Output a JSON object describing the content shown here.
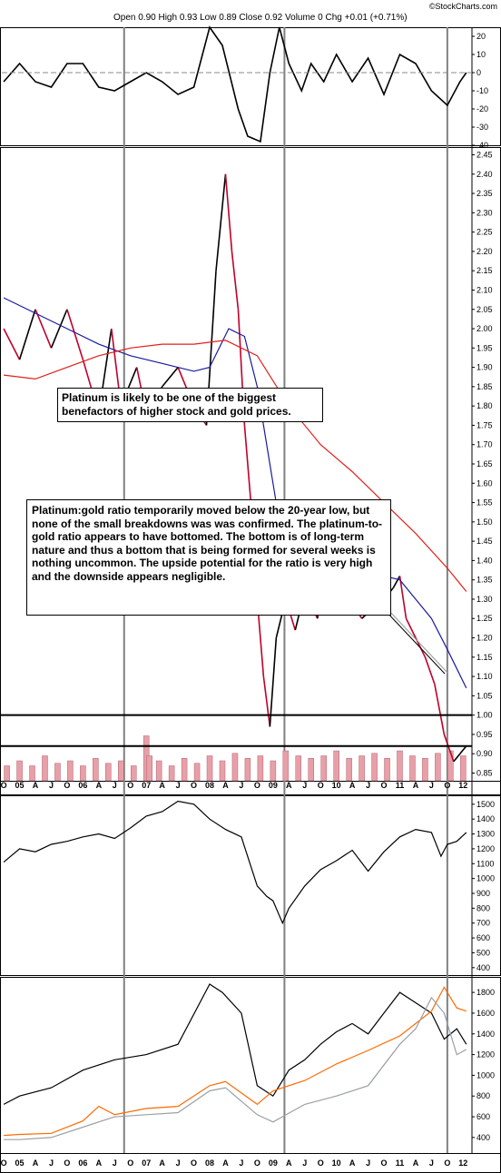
{
  "header": {
    "credit": "©StockCharts.com",
    "quote": "Open 0.90  High 0.93  Low 0.89  Close 0.92  Volume 0  Chg +0.01 (+0.71%)"
  },
  "annotations": {
    "note1": "Platinum is likely to be one of the biggest benefactors of higher stock and gold prices.",
    "note2": "Platinum:gold ratio temporarily moved below the 20-year low, but none of the small breakdowns was was confirmed. The platinum-to-gold ratio appears to have bottomed. The bottom is of long-term nature and thus a bottom that is being formed for several weeks is nothing uncommon. The upside potential for the ratio is very high and the downside appears negligible."
  },
  "colors": {
    "price_up": "#000000",
    "price_down": "#c0002a",
    "ma_fast": "#1a1aa0",
    "ma_slow": "#e0201a",
    "volume": "#e8a0a8",
    "orange": "#ff6a00",
    "gray": "#9aa0a6",
    "vline": "#808080"
  },
  "chart_data": [
    {
      "type": "line",
      "panel": "momentum",
      "ylim": [
        -40,
        25
      ],
      "yticks": [
        "20",
        "10",
        "0",
        "-10",
        "-20",
        "-30",
        "-40"
      ],
      "x": [
        2004.75,
        2005.0,
        2005.25,
        2005.5,
        2005.75,
        2006.0,
        2006.25,
        2006.5,
        2006.75,
        2007.0,
        2007.25,
        2007.5,
        2007.75,
        2008.0,
        2008.2,
        2008.45,
        2008.6,
        2008.8,
        2008.95,
        2009.1,
        2009.25,
        2009.45,
        2009.6,
        2009.8,
        2010.0,
        2010.25,
        2010.5,
        2010.75,
        2011.0,
        2011.25,
        2011.5,
        2011.75,
        2011.95,
        2012.05
      ],
      "y": [
        -5,
        5,
        -5,
        -8,
        5,
        5,
        -8,
        -10,
        -5,
        0,
        -5,
        -12,
        -8,
        25,
        15,
        -20,
        -35,
        -38,
        0,
        25,
        5,
        -10,
        5,
        -5,
        10,
        -5,
        8,
        -12,
        10,
        5,
        -10,
        -18,
        -5,
        0
      ]
    },
    {
      "type": "line",
      "panel": "platinum-gold-ratio",
      "ylim": [
        0.83,
        2.47
      ],
      "yticks": [
        "2.45",
        "2.40",
        "2.35",
        "2.30",
        "2.25",
        "2.20",
        "2.15",
        "2.10",
        "2.05",
        "2.00",
        "1.95",
        "1.90",
        "1.85",
        "1.80",
        "1.75",
        "1.70",
        "1.65",
        "1.60",
        "1.55",
        "1.50",
        "1.45",
        "1.40",
        "1.35",
        "1.30",
        "1.25",
        "1.20",
        "1.15",
        "1.10",
        "1.05",
        "1.00",
        "0.95",
        "0.90",
        "0.85"
      ],
      "hlines": [
        1.0,
        0.92
      ],
      "series": [
        {
          "role": "price",
          "x": [
            2004.75,
            2005.0,
            2005.25,
            2005.5,
            2005.75,
            2006.0,
            2006.25,
            2006.45,
            2006.6,
            2006.85,
            2007.0,
            2007.25,
            2007.5,
            2007.75,
            2007.95,
            2008.1,
            2008.25,
            2008.35,
            2008.45,
            2008.55,
            2008.65,
            2008.75,
            2008.85,
            2008.95,
            2009.05,
            2009.2,
            2009.35,
            2009.5,
            2009.7,
            2009.9,
            2010.05,
            2010.2,
            2010.4,
            2010.6,
            2010.75,
            2010.9,
            2011.0,
            2011.1,
            2011.25,
            2011.4,
            2011.55,
            2011.7,
            2011.85,
            2011.95,
            2012.05
          ],
          "y": [
            2.0,
            1.92,
            2.05,
            1.95,
            2.05,
            1.92,
            1.78,
            2.0,
            1.8,
            1.9,
            1.78,
            1.85,
            1.9,
            1.8,
            1.75,
            2.15,
            2.4,
            2.2,
            2.05,
            1.75,
            1.55,
            1.3,
            1.1,
            0.97,
            1.2,
            1.3,
            1.22,
            1.32,
            1.25,
            1.45,
            1.5,
            1.3,
            1.25,
            1.28,
            1.3,
            1.33,
            1.36,
            1.25,
            1.2,
            1.15,
            1.08,
            0.95,
            0.88,
            0.9,
            0.92
          ]
        },
        {
          "role": "ma-fast",
          "x": [
            2004.75,
            2005.25,
            2005.75,
            2006.25,
            2006.75,
            2007.25,
            2007.75,
            2008.0,
            2008.3,
            2008.55,
            2008.75,
            2009.0,
            2009.25,
            2009.5,
            2009.75,
            2010.0,
            2010.25,
            2010.5,
            2010.75,
            2011.0,
            2011.25,
            2011.5,
            2011.75,
            2012.05
          ],
          "y": [
            2.08,
            2.04,
            2.0,
            1.96,
            1.93,
            1.91,
            1.89,
            1.9,
            2.0,
            1.98,
            1.85,
            1.6,
            1.35,
            1.27,
            1.28,
            1.32,
            1.35,
            1.37,
            1.36,
            1.35,
            1.3,
            1.25,
            1.17,
            1.07
          ]
        },
        {
          "role": "ma-slow",
          "x": [
            2004.75,
            2005.25,
            2005.75,
            2006.25,
            2006.75,
            2007.25,
            2007.75,
            2008.25,
            2008.75,
            2009.25,
            2009.75,
            2010.25,
            2010.75,
            2011.25,
            2011.75,
            2012.05
          ],
          "y": [
            1.88,
            1.87,
            1.9,
            1.93,
            1.95,
            1.96,
            1.96,
            1.97,
            1.93,
            1.8,
            1.7,
            1.63,
            1.55,
            1.47,
            1.38,
            1.32
          ]
        }
      ],
      "volume": {
        "x": [
          2004.8,
          2005.0,
          2005.2,
          2005.4,
          2005.6,
          2005.8,
          2006.0,
          2006.2,
          2006.4,
          2006.6,
          2006.8,
          2007.0,
          2007.05,
          2007.2,
          2007.4,
          2007.6,
          2007.8,
          2008.0,
          2008.2,
          2008.4,
          2008.6,
          2008.8,
          2009.0,
          2009.2,
          2009.4,
          2009.6,
          2009.8,
          2010.0,
          2010.2,
          2010.4,
          2010.6,
          2010.8,
          2011.0,
          2011.2,
          2011.4,
          2011.6,
          2011.8,
          2012.0
        ],
        "y": [
          0.3,
          0.4,
          0.3,
          0.5,
          0.35,
          0.4,
          0.3,
          0.45,
          0.35,
          0.4,
          0.3,
          0.9,
          0.5,
          0.4,
          0.3,
          0.45,
          0.35,
          0.5,
          0.4,
          0.55,
          0.45,
          0.5,
          0.4,
          0.6,
          0.5,
          0.45,
          0.5,
          0.6,
          0.45,
          0.5,
          0.55,
          0.45,
          0.6,
          0.5,
          0.45,
          0.55,
          0.6,
          0.5
        ]
      }
    },
    {
      "type": "line",
      "panel": "stock-index",
      "ylim": [
        350,
        1560
      ],
      "yticks": [
        "1500",
        "1400",
        "1300",
        "1200",
        "1100",
        "1000",
        "900",
        "800",
        "700",
        "600",
        "500",
        "400"
      ],
      "x": [
        2004.75,
        2005.0,
        2005.25,
        2005.5,
        2005.75,
        2006.0,
        2006.25,
        2006.5,
        2006.75,
        2007.0,
        2007.25,
        2007.5,
        2007.75,
        2008.0,
        2008.25,
        2008.5,
        2008.75,
        2008.9,
        2009.0,
        2009.15,
        2009.25,
        2009.5,
        2009.75,
        2010.0,
        2010.25,
        2010.5,
        2010.75,
        2011.0,
        2011.25,
        2011.5,
        2011.65,
        2011.75,
        2011.9,
        2012.05
      ],
      "y": [
        1110,
        1200,
        1180,
        1230,
        1250,
        1280,
        1300,
        1270,
        1340,
        1420,
        1450,
        1520,
        1500,
        1400,
        1330,
        1280,
        950,
        880,
        850,
        700,
        800,
        950,
        1060,
        1120,
        1190,
        1050,
        1180,
        1280,
        1330,
        1310,
        1150,
        1230,
        1250,
        1310
      ]
    },
    {
      "type": "line",
      "panel": "metals",
      "ylim": [
        250,
        1950
      ],
      "yticks": [
        "1800",
        "1600",
        "1400",
        "1200",
        "1000",
        "800",
        "600",
        "400"
      ],
      "series": [
        {
          "role": "black",
          "x": [
            2004.75,
            2005.0,
            2005.5,
            2006.0,
            2006.5,
            2007.0,
            2007.5,
            2008.0,
            2008.2,
            2008.5,
            2008.75,
            2009.0,
            2009.25,
            2009.5,
            2009.75,
            2010.0,
            2010.25,
            2010.5,
            2010.75,
            2011.0,
            2011.25,
            2011.5,
            2011.7,
            2011.9,
            2012.05
          ],
          "y": [
            720,
            800,
            880,
            1050,
            1150,
            1200,
            1300,
            1880,
            1800,
            1600,
            900,
            800,
            1050,
            1150,
            1300,
            1420,
            1500,
            1400,
            1600,
            1800,
            1700,
            1600,
            1350,
            1450,
            1300
          ]
        },
        {
          "role": "orange",
          "x": [
            2004.75,
            2005.0,
            2005.5,
            2006.0,
            2006.25,
            2006.5,
            2007.0,
            2007.5,
            2008.0,
            2008.25,
            2008.75,
            2009.0,
            2009.5,
            2010.0,
            2010.5,
            2011.0,
            2011.5,
            2011.7,
            2011.9,
            2012.05
          ],
          "y": [
            420,
            430,
            440,
            560,
            700,
            620,
            680,
            700,
            900,
            940,
            720,
            850,
            950,
            1110,
            1240,
            1380,
            1620,
            1850,
            1650,
            1620
          ]
        },
        {
          "role": "gray",
          "x": [
            2004.75,
            2005.0,
            2005.5,
            2006.0,
            2006.5,
            2007.0,
            2007.5,
            2008.0,
            2008.25,
            2008.75,
            2009.0,
            2009.5,
            2010.0,
            2010.5,
            2011.0,
            2011.25,
            2011.5,
            2011.7,
            2011.9,
            2012.05
          ],
          "y": [
            380,
            380,
            400,
            500,
            600,
            620,
            640,
            850,
            880,
            620,
            550,
            720,
            800,
            900,
            1300,
            1450,
            1750,
            1600,
            1200,
            1250
          ]
        }
      ]
    }
  ],
  "x_axis": {
    "xlim": [
      2004.72,
      2012.11
    ],
    "labels": [
      {
        "x": 2004.75,
        "label": "O"
      },
      {
        "x": 2005.0,
        "label": "05"
      },
      {
        "x": 2005.25,
        "label": "A"
      },
      {
        "x": 2005.5,
        "label": "J"
      },
      {
        "x": 2005.75,
        "label": "O"
      },
      {
        "x": 2006.0,
        "label": "06"
      },
      {
        "x": 2006.25,
        "label": "A"
      },
      {
        "x": 2006.5,
        "label": "J"
      },
      {
        "x": 2006.75,
        "label": "O"
      },
      {
        "x": 2007.0,
        "label": "07"
      },
      {
        "x": 2007.25,
        "label": "A"
      },
      {
        "x": 2007.5,
        "label": "J"
      },
      {
        "x": 2007.75,
        "label": "O"
      },
      {
        "x": 2008.0,
        "label": "08"
      },
      {
        "x": 2008.25,
        "label": "A"
      },
      {
        "x": 2008.5,
        "label": "J"
      },
      {
        "x": 2008.75,
        "label": "O"
      },
      {
        "x": 2009.0,
        "label": "09"
      },
      {
        "x": 2009.25,
        "label": "A"
      },
      {
        "x": 2009.5,
        "label": "J"
      },
      {
        "x": 2009.75,
        "label": "O"
      },
      {
        "x": 2010.0,
        "label": "10"
      },
      {
        "x": 2010.25,
        "label": "A"
      },
      {
        "x": 2010.5,
        "label": "J"
      },
      {
        "x": 2010.75,
        "label": "O"
      },
      {
        "x": 2011.0,
        "label": "11"
      },
      {
        "x": 2011.25,
        "label": "A"
      },
      {
        "x": 2011.5,
        "label": "J"
      },
      {
        "x": 2011.75,
        "label": "O"
      },
      {
        "x": 2012.0,
        "label": "12"
      }
    ],
    "markers": [
      2006.65,
      2009.18,
      2011.75
    ]
  }
}
